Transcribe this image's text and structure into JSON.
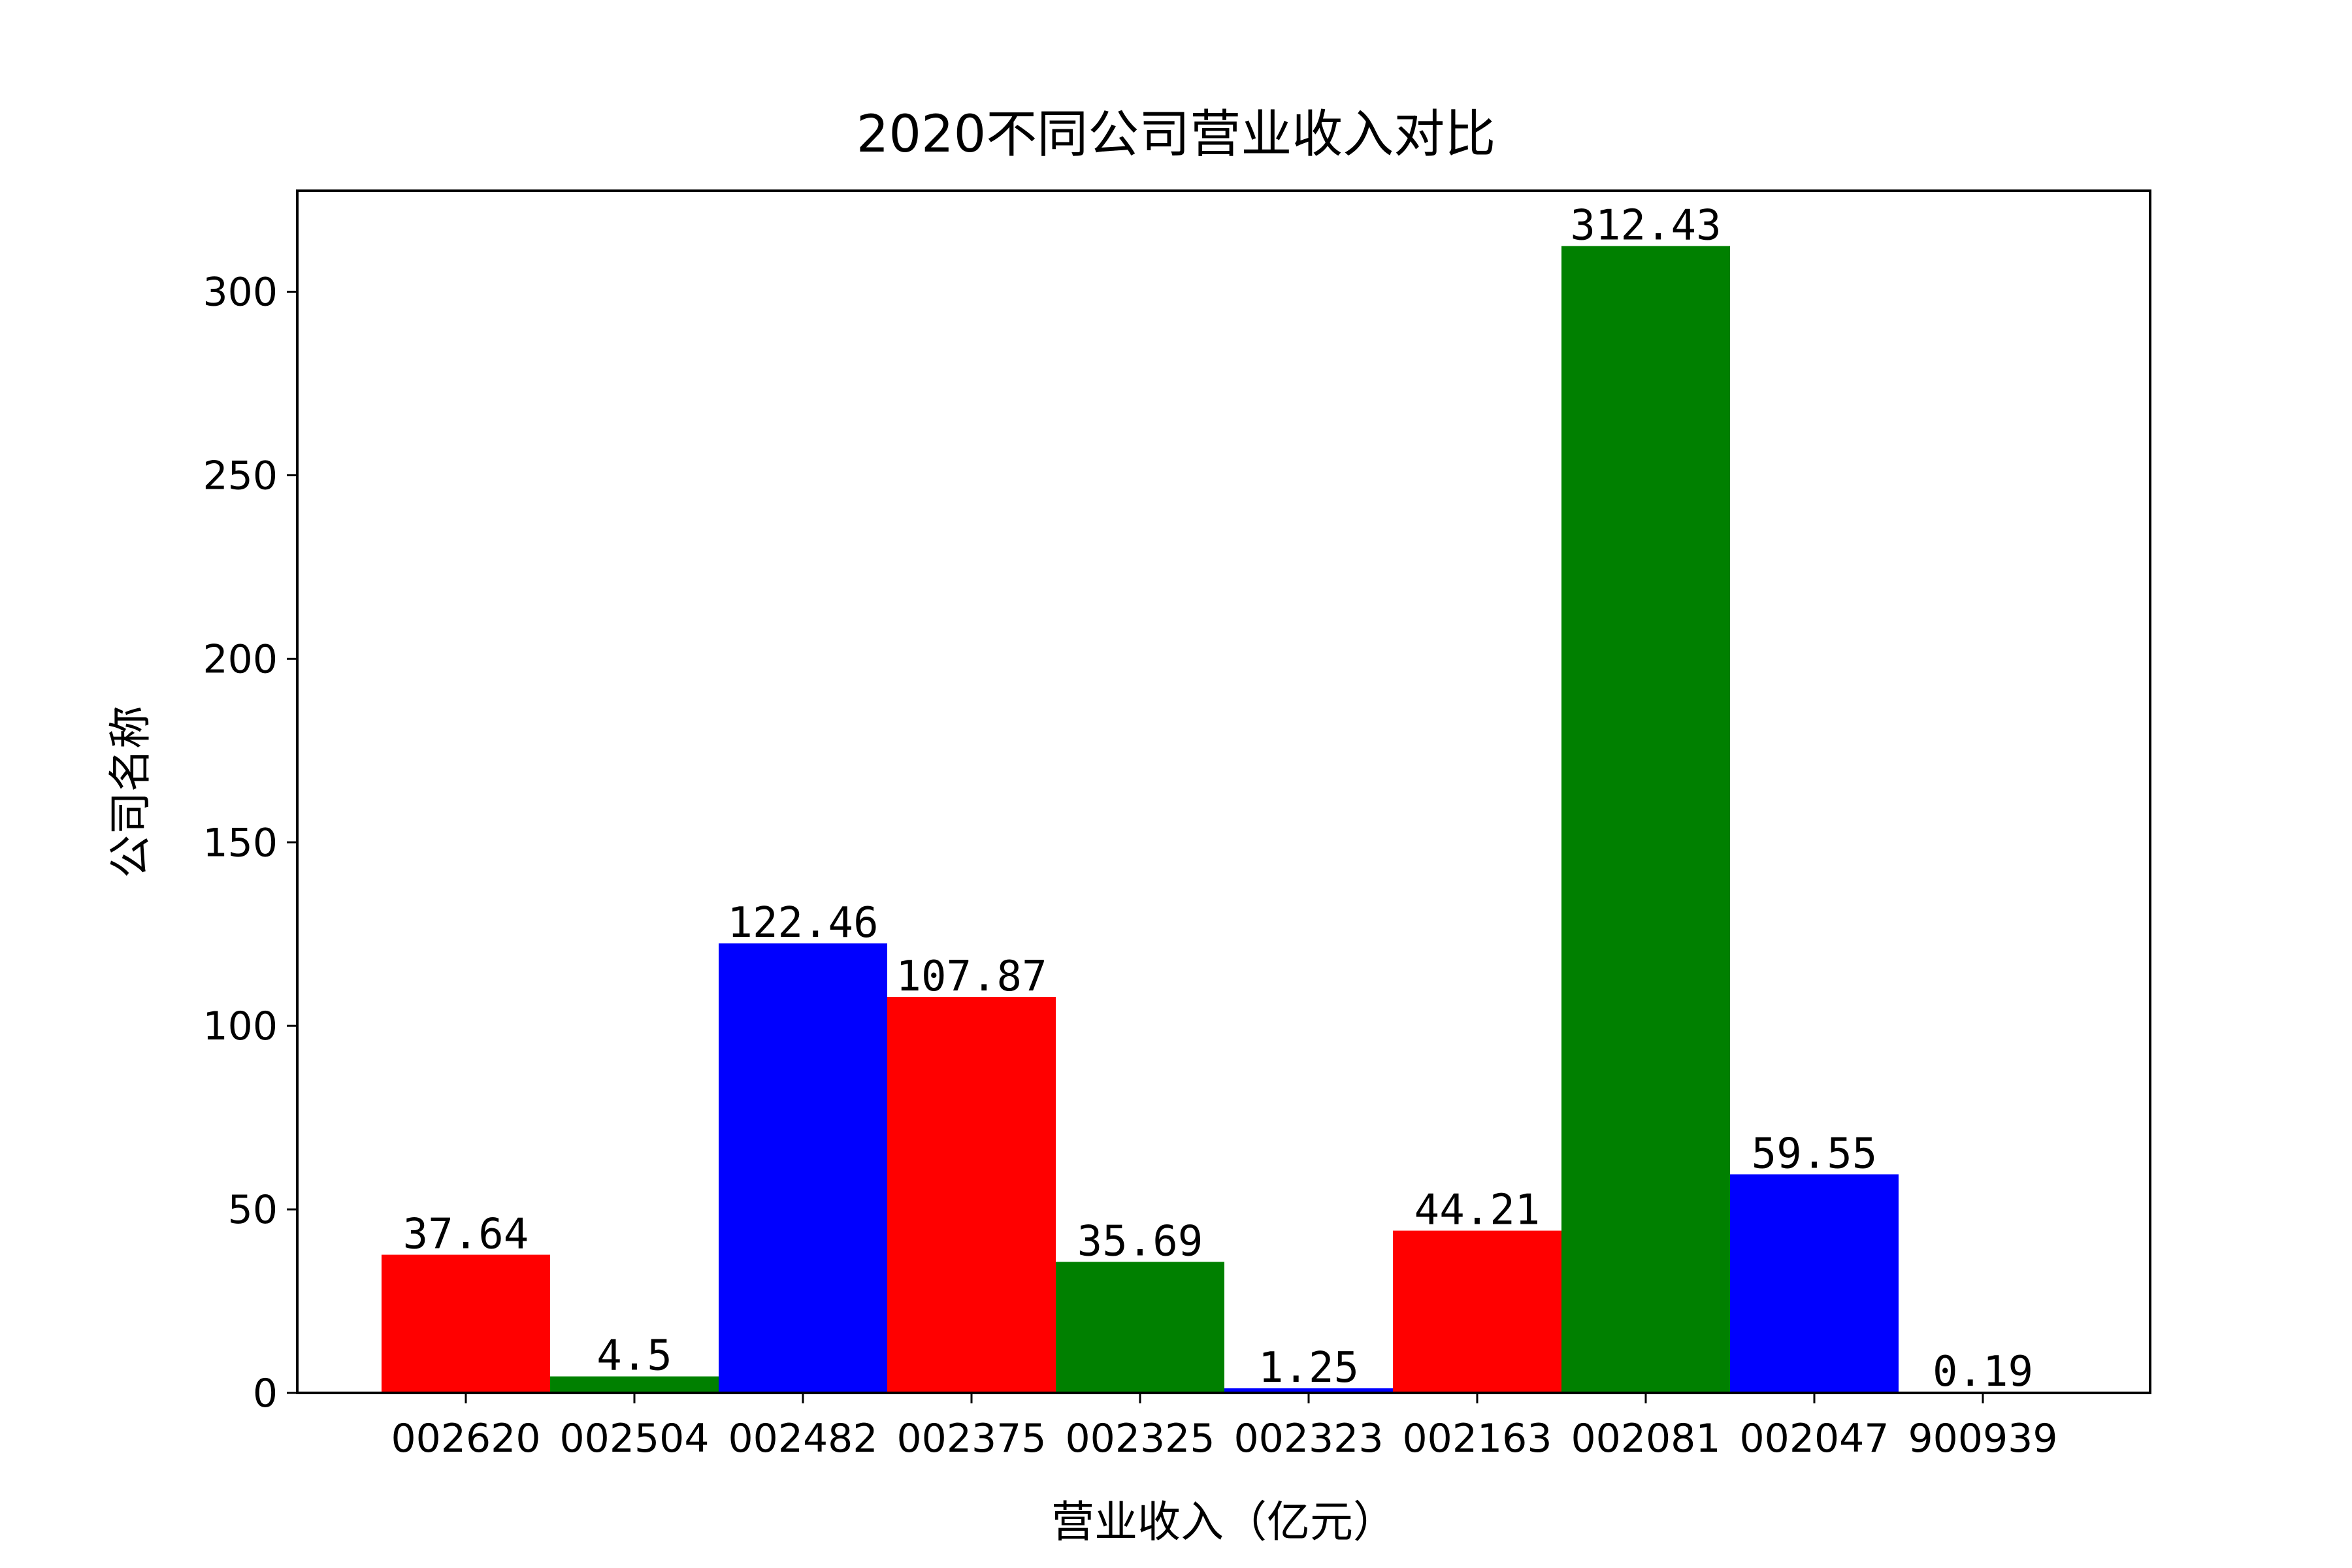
{
  "chart_data": {
    "type": "bar",
    "title": "2020不同公司营业收入对比",
    "xlabel": "营业收入（亿元）",
    "ylabel": "公司名称",
    "categories": [
      "002620",
      "002504",
      "002482",
      "002375",
      "002325",
      "002323",
      "002163",
      "002081",
      "002047",
      "900939"
    ],
    "values": [
      37.64,
      4.5,
      122.46,
      107.87,
      35.69,
      1.25,
      44.21,
      312.43,
      59.55,
      0.19
    ],
    "value_labels": [
      "37.64",
      "4.5",
      "122.46",
      "107.87",
      "35.69",
      "1.25",
      "44.21",
      "312.43",
      "59.55",
      "0.19"
    ],
    "bar_colors": [
      "#ff0000",
      "#008000",
      "#0000ff",
      "#ff0000",
      "#008000",
      "#0000ff",
      "#ff0000",
      "#008000",
      "#0000ff",
      "#ff0000"
    ],
    "yticks": [
      0,
      50,
      100,
      150,
      200,
      250,
      300
    ],
    "ylim": [
      0,
      327.5
    ],
    "grid": false,
    "legend": "none"
  }
}
